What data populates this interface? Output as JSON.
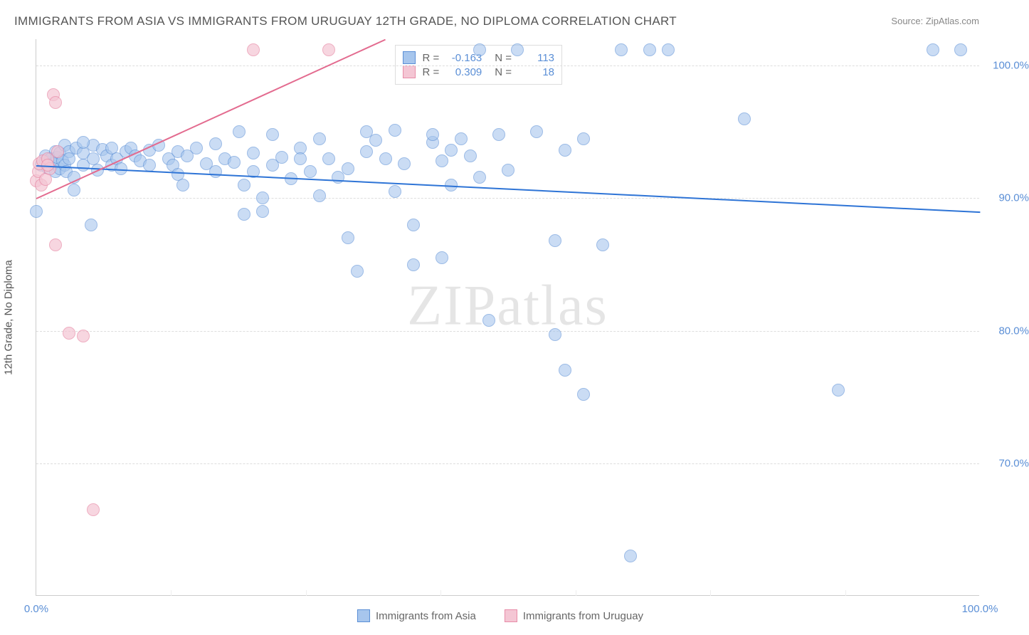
{
  "title": "IMMIGRANTS FROM ASIA VS IMMIGRANTS FROM URUGUAY 12TH GRADE, NO DIPLOMA CORRELATION CHART",
  "source_label": "Source:",
  "source_name": "ZipAtlas.com",
  "ylabel": "12th Grade, No Diploma",
  "watermark": "ZIPatlas",
  "chart": {
    "type": "scatter",
    "xlim": [
      0,
      100
    ],
    "ylim": [
      60,
      102
    ],
    "x_ticks": [
      0,
      100
    ],
    "x_tick_labels": [
      "0.0%",
      "100.0%"
    ],
    "y_ticks": [
      70,
      80,
      90,
      100
    ],
    "y_tick_labels": [
      "70.0%",
      "80.0%",
      "90.0%",
      "100.0%"
    ],
    "grid_color": "#dddddd",
    "background_color": "#ffffff",
    "series": [
      {
        "name": "Immigrants from Asia",
        "color_fill": "#a7c6ed",
        "color_stroke": "#5b8fd6",
        "opacity": 0.6,
        "marker_radius": 9,
        "R": "-0.163",
        "N": "113",
        "trend": {
          "x1": 0,
          "y1": 92.5,
          "x2": 100,
          "y2": 89.0,
          "color": "#2e74d6",
          "width": 2
        },
        "points": [
          [
            0,
            89
          ],
          [
            0.5,
            92.5
          ],
          [
            1,
            92.8
          ],
          [
            1,
            93.2
          ],
          [
            1.2,
            92.3
          ],
          [
            1.5,
            93.0
          ],
          [
            1.8,
            92.6
          ],
          [
            2,
            92.0
          ],
          [
            2,
            93.5
          ],
          [
            2.2,
            93.1
          ],
          [
            2.5,
            93.4
          ],
          [
            2.5,
            92.2
          ],
          [
            2.8,
            92.8
          ],
          [
            3,
            92.5
          ],
          [
            3,
            94.0
          ],
          [
            3.2,
            92.0
          ],
          [
            3.5,
            93.5
          ],
          [
            3.5,
            93.0
          ],
          [
            4,
            91.6
          ],
          [
            4,
            90.6
          ],
          [
            4.2,
            93.8
          ],
          [
            5,
            93.4
          ],
          [
            5,
            92.5
          ],
          [
            5.8,
            88.0
          ],
          [
            6,
            94.0
          ],
          [
            6,
            93.0
          ],
          [
            6.5,
            92.1
          ],
          [
            7,
            93.7
          ],
          [
            7.5,
            93.2
          ],
          [
            8,
            93.8
          ],
          [
            8,
            92.5
          ],
          [
            8.5,
            93.0
          ],
          [
            9,
            92.2
          ],
          [
            9.5,
            93.5
          ],
          [
            10,
            93.8
          ],
          [
            10.5,
            93.2
          ],
          [
            11,
            92.8
          ],
          [
            12,
            93.6
          ],
          [
            12,
            92.5
          ],
          [
            13,
            94.0
          ],
          [
            14,
            93.0
          ],
          [
            14.5,
            92.5
          ],
          [
            15,
            93.5
          ],
          [
            15,
            91.8
          ],
          [
            15.5,
            91.0
          ],
          [
            16,
            93.2
          ],
          [
            17,
            93.8
          ],
          [
            18,
            92.6
          ],
          [
            19,
            94.1
          ],
          [
            19,
            92.0
          ],
          [
            20,
            93.0
          ],
          [
            21,
            92.7
          ],
          [
            21.5,
            95.0
          ],
          [
            22,
            88.8
          ],
          [
            22,
            91.0
          ],
          [
            23,
            93.4
          ],
          [
            23,
            92.0
          ],
          [
            24,
            90.0
          ],
          [
            24,
            89.0
          ],
          [
            25,
            92.5
          ],
          [
            25,
            94.8
          ],
          [
            26,
            93.1
          ],
          [
            27,
            91.5
          ],
          [
            28,
            93.8
          ],
          [
            28,
            93.0
          ],
          [
            29,
            92.0
          ],
          [
            30,
            90.2
          ],
          [
            30,
            94.5
          ],
          [
            31,
            93.0
          ],
          [
            32,
            91.6
          ],
          [
            33,
            87.0
          ],
          [
            33,
            92.2
          ],
          [
            34,
            84.5
          ],
          [
            35,
            93.5
          ],
          [
            35,
            95.0
          ],
          [
            36,
            94.4
          ],
          [
            37,
            93.0
          ],
          [
            38,
            90.5
          ],
          [
            38,
            95.1
          ],
          [
            39,
            92.6
          ],
          [
            40,
            88.0
          ],
          [
            40,
            85.0
          ],
          [
            42,
            94.2
          ],
          [
            42,
            94.8
          ],
          [
            43,
            92.8
          ],
          [
            43,
            85.5
          ],
          [
            44,
            93.6
          ],
          [
            44,
            91.0
          ],
          [
            45,
            94.5
          ],
          [
            46,
            93.2
          ],
          [
            47,
            91.6
          ],
          [
            47,
            101.2
          ],
          [
            48,
            80.8
          ],
          [
            49,
            94.8
          ],
          [
            50,
            92.1
          ],
          [
            51,
            101.2
          ],
          [
            53,
            95.0
          ],
          [
            55,
            86.8
          ],
          [
            55,
            79.7
          ],
          [
            56,
            93.6
          ],
          [
            56,
            77.0
          ],
          [
            58,
            94.5
          ],
          [
            58,
            75.2
          ],
          [
            60,
            86.5
          ],
          [
            62,
            101.2
          ],
          [
            63,
            63.0
          ],
          [
            65,
            101.2
          ],
          [
            67,
            101.2
          ],
          [
            75,
            96.0
          ],
          [
            85,
            75.5
          ],
          [
            95,
            101.2
          ],
          [
            98,
            101.2
          ],
          [
            5,
            94.2
          ]
        ]
      },
      {
        "name": "Immigrants from Uruguay",
        "color_fill": "#f4c6d4",
        "color_stroke": "#e88ca8",
        "opacity": 0.7,
        "marker_radius": 9,
        "R": "0.309",
        "N": "18",
        "trend": {
          "x1": 0,
          "y1": 90.0,
          "x2": 37,
          "y2": 104.0,
          "color": "#e36b8f",
          "width": 2
        },
        "points": [
          [
            0,
            91.3
          ],
          [
            0.2,
            92.0
          ],
          [
            0.3,
            92.6
          ],
          [
            0.5,
            91.0
          ],
          [
            0.7,
            92.8
          ],
          [
            1,
            91.4
          ],
          [
            1.2,
            93.0
          ],
          [
            1.4,
            92.2
          ],
          [
            1.8,
            97.8
          ],
          [
            2,
            97.2
          ],
          [
            2.3,
            93.5
          ],
          [
            2,
            86.5
          ],
          [
            3.5,
            79.8
          ],
          [
            5,
            79.6
          ],
          [
            6,
            66.5
          ],
          [
            23,
            101.2
          ],
          [
            31,
            101.2
          ],
          [
            1.2,
            92.5
          ]
        ]
      }
    ]
  },
  "legend_bottom": [
    {
      "label": "Immigrants from Asia",
      "fill": "#a7c6ed",
      "stroke": "#5b8fd6"
    },
    {
      "label": "Immigrants from Uruguay",
      "fill": "#f4c6d4",
      "stroke": "#e88ca8"
    }
  ]
}
